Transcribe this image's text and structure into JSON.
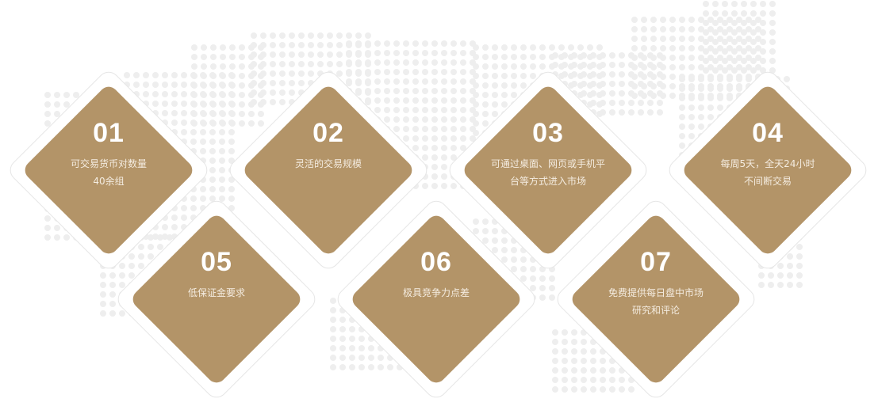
{
  "features": [
    {
      "number": "01",
      "text": "可交易货币对数量\n40余组"
    },
    {
      "number": "02",
      "text": "灵活的交易规模"
    },
    {
      "number": "03",
      "text": "可通过桌面、网页或手机平\n台等方式进入市场"
    },
    {
      "number": "04",
      "text": "每周5天，全天24小时\n不间断交易"
    },
    {
      "number": "05",
      "text": "低保证金要求"
    },
    {
      "number": "06",
      "text": "极具竞争力点差"
    },
    {
      "number": "07",
      "text": "免费提供每日盘中市场\n研究和评论"
    }
  ],
  "colors": {
    "diamond": "#b39468",
    "map_dots": "#eeeeee"
  }
}
